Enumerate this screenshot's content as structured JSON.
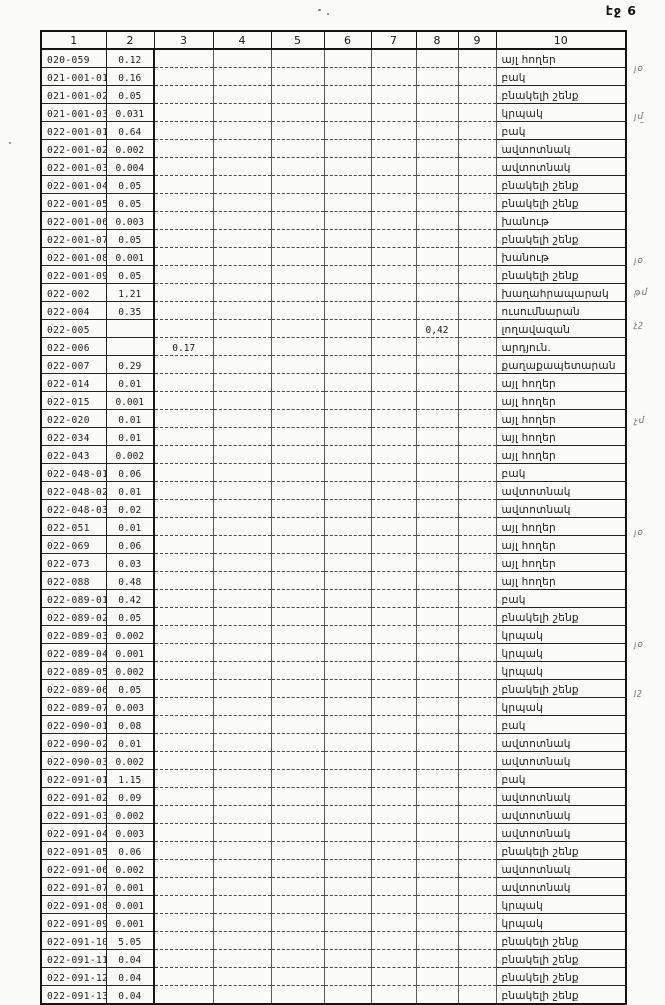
{
  "page": {
    "page_label": "էջ 6"
  },
  "table": {
    "columns": [
      "1",
      "2",
      "3",
      "4",
      "5",
      "6",
      "7",
      "8",
      "9",
      "10"
    ],
    "rows": [
      [
        "020-059",
        "0.12",
        "",
        "",
        "",
        "",
        "",
        "",
        "",
        "այլ հողեր"
      ],
      [
        "021-001-01",
        "0.16",
        "",
        "",
        "",
        "",
        "",
        "",
        "",
        "բակ"
      ],
      [
        "021-001-02",
        "0.05",
        "",
        "",
        "",
        "",
        "",
        "",
        "",
        "բնակելի շենք"
      ],
      [
        "021-001-03",
        "0.031",
        "",
        "",
        "",
        "",
        "",
        "",
        "",
        "կրպակ"
      ],
      [
        "022-001-01",
        "0.64",
        "",
        "",
        "",
        "",
        "",
        "",
        "",
        "բակ"
      ],
      [
        "022-001-02",
        "0.002",
        "",
        "",
        "",
        "",
        "",
        "",
        "",
        "ավտոտնակ"
      ],
      [
        "022-001-03",
        "0.004",
        "",
        "",
        "",
        "",
        "",
        "",
        "",
        "ավտոտնակ"
      ],
      [
        "022-001-04",
        "0.05",
        "",
        "",
        "",
        "",
        "",
        "",
        "",
        "բնակելի շենք"
      ],
      [
        "022-001-05",
        "0.05",
        "",
        "",
        "",
        "",
        "",
        "",
        "",
        "բնակելի շենք"
      ],
      [
        "022-001-06",
        "0.003",
        "",
        "",
        "",
        "",
        "",
        "",
        "",
        "խանութ"
      ],
      [
        "022-001-07",
        "0.05",
        "",
        "",
        "",
        "",
        "",
        "",
        "",
        "բնակելի շենք"
      ],
      [
        "022-001-08",
        "0.001",
        "",
        "",
        "",
        "",
        "",
        "",
        "",
        "խանութ"
      ],
      [
        "022-001-09",
        "0.05",
        "",
        "",
        "",
        "",
        "",
        "",
        "",
        "բնակելի շենք"
      ],
      [
        "022-002",
        "1.21",
        "",
        "",
        "",
        "",
        "",
        "",
        "",
        "խաղահրապարակ"
      ],
      [
        "022-004",
        "0.35",
        "",
        "",
        "",
        "",
        "",
        "",
        "",
        "ուսումնարան"
      ],
      [
        "022-005",
        "",
        "",
        "",
        "",
        "",
        "",
        "0,42",
        "",
        "լողավազան"
      ],
      [
        "022-006",
        "",
        "0.17",
        "",
        "",
        "",
        "",
        "",
        "",
        "արդյուն."
      ],
      [
        "022-007",
        "0.29",
        "",
        "",
        "",
        "",
        "",
        "",
        "",
        "քաղաքապետարան"
      ],
      [
        "022-014",
        "0.01",
        "",
        "",
        "",
        "",
        "",
        "",
        "",
        "այլ հողեր"
      ],
      [
        "022-015",
        "0.001",
        "",
        "",
        "",
        "",
        "",
        "",
        "",
        "այլ հողեր"
      ],
      [
        "022-020",
        "0.01",
        "",
        "",
        "",
        "",
        "",
        "",
        "",
        "այլ հողեր"
      ],
      [
        "022-034",
        "0.01",
        "",
        "",
        "",
        "",
        "",
        "",
        "",
        "այլ հողեր"
      ],
      [
        "022-043",
        "0.002",
        "",
        "",
        "",
        "",
        "",
        "",
        "",
        "այլ հողեր"
      ],
      [
        "022-048-01",
        "0.06",
        "",
        "",
        "",
        "",
        "",
        "",
        "",
        "բակ"
      ],
      [
        "022-048-02",
        "0.01",
        "",
        "",
        "",
        "",
        "",
        "",
        "",
        "ավտոտնակ"
      ],
      [
        "022-048-03",
        "0.02",
        "",
        "",
        "",
        "",
        "",
        "",
        "",
        "ավտոտնակ"
      ],
      [
        "022-051",
        "0.01",
        "",
        "",
        "",
        "",
        "",
        "",
        "",
        "այլ հողեր"
      ],
      [
        "022-069",
        "0.06",
        "",
        "",
        "",
        "",
        "",
        "",
        "",
        "այլ հողեր"
      ],
      [
        "022-073",
        "0.03",
        "",
        "",
        "",
        "",
        "",
        "",
        "",
        "այլ հողեր"
      ],
      [
        "022-088",
        "0.48",
        "",
        "",
        "",
        "",
        "",
        "",
        "",
        "այլ հողեր"
      ],
      [
        "022-089-01",
        "0.42",
        "",
        "",
        "",
        "",
        "",
        "",
        "",
        "բակ"
      ],
      [
        "022-089-02",
        "0.05",
        "",
        "",
        "",
        "",
        "",
        "",
        "",
        "բնակելի շենք"
      ],
      [
        "022-089-03",
        "0.002",
        "",
        "",
        "",
        "",
        "",
        "",
        "",
        "կրպակ"
      ],
      [
        "022-089-04",
        "0.001",
        "",
        "",
        "",
        "",
        "",
        "",
        "",
        "կրպակ"
      ],
      [
        "022-089-05",
        "0.002",
        "",
        "",
        "",
        "",
        "",
        "",
        "",
        "կրպակ"
      ],
      [
        "022-089-06",
        "0.05",
        "",
        "",
        "",
        "",
        "",
        "",
        "",
        "բնակելի շենք"
      ],
      [
        "022-089-07",
        "0.003",
        "",
        "",
        "",
        "",
        "",
        "",
        "",
        "կրպակ"
      ],
      [
        "022-090-01",
        "0.08",
        "",
        "",
        "",
        "",
        "",
        "",
        "",
        "բակ"
      ],
      [
        "022-090-02",
        "0.01",
        "",
        "",
        "",
        "",
        "",
        "",
        "",
        "ավտոտնակ"
      ],
      [
        "022-090-03",
        "0.002",
        "",
        "",
        "",
        "",
        "",
        "",
        "",
        "ավտոտնակ"
      ],
      [
        "022-091-01",
        "1.15",
        "",
        "",
        "",
        "",
        "",
        "",
        "",
        "բակ"
      ],
      [
        "022-091-02",
        "0.09",
        "",
        "",
        "",
        "",
        "",
        "",
        "",
        "ավտոտնակ"
      ],
      [
        "022-091-03",
        "0.002",
        "",
        "",
        "",
        "",
        "",
        "",
        "",
        "ավտոտնակ"
      ],
      [
        "022-091-04",
        "0.003",
        "",
        "",
        "",
        "",
        "",
        "",
        "",
        "ավտոտնակ"
      ],
      [
        "022-091-05",
        "0.06",
        "",
        "",
        "",
        "",
        "",
        "",
        "",
        "բնակելի շենք"
      ],
      [
        "022-091-06",
        "0.002",
        "",
        "",
        "",
        "",
        "",
        "",
        "",
        "ավտոտնակ"
      ],
      [
        "022-091-07",
        "0.001",
        "",
        "",
        "",
        "",
        "",
        "",
        "",
        "ավտոտնակ"
      ],
      [
        "022-091-08",
        "0.001",
        "",
        "",
        "",
        "",
        "",
        "",
        "",
        "կրպակ"
      ],
      [
        "022-091-09",
        "0.001",
        "",
        "",
        "",
        "",
        "",
        "",
        "",
        "կրպակ"
      ],
      [
        "022-091-10",
        "5.05",
        "",
        "",
        "",
        "",
        "",
        "",
        "",
        "բնակելի շենք"
      ],
      [
        "022-091-11",
        "0.04",
        "",
        "",
        "",
        "",
        "",
        "",
        "",
        "բնակելի շենք"
      ],
      [
        "022-091-12",
        "0.04",
        "",
        "",
        "",
        "",
        "",
        "",
        "",
        "բնակելի շենք"
      ],
      [
        "022-091-13",
        "0.04",
        "",
        "",
        "",
        "",
        "",
        "",
        "",
        "բնակելի շենք"
      ]
    ]
  },
  "margin_marks": [
    {
      "row": 1,
      "text": "յօ"
    },
    {
      "row": 4,
      "text": "յմ"
    },
    {
      "row": 13,
      "text": "յօ"
    },
    {
      "row": 15,
      "text": "թմ"
    },
    {
      "row": 17,
      "text": "չշ"
    },
    {
      "row": 23,
      "text": "չմ"
    },
    {
      "row": 30,
      "text": "յօ"
    },
    {
      "row": 37,
      "text": "յօ"
    },
    {
      "row": 40,
      "text": "յշ"
    }
  ]
}
